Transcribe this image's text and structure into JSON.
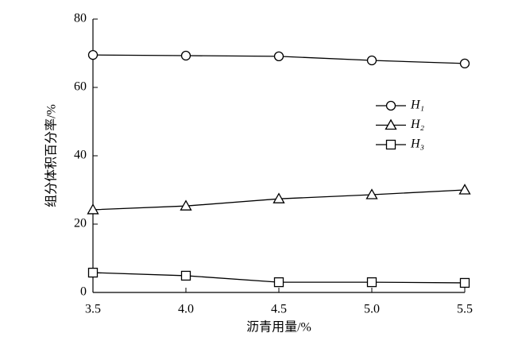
{
  "chart_data": {
    "type": "line",
    "x_label": "沥青用量/%",
    "y_label": "组分体积百分率/%",
    "x": [
      3.5,
      4.0,
      4.5,
      5.0,
      5.5
    ],
    "series": [
      {
        "name": "H₁",
        "color": "#000000",
        "marker": "circle",
        "values": [
          69.5,
          69.3,
          69.1,
          67.9,
          67.0
        ]
      },
      {
        "name": "H₂",
        "color": "#000000",
        "marker": "triangle",
        "values": [
          24.2,
          25.3,
          27.4,
          28.6,
          30.0
        ]
      },
      {
        "name": "H₃",
        "color": "#000000",
        "marker": "square",
        "values": [
          5.8,
          4.9,
          3.0,
          3.0,
          2.8
        ]
      }
    ],
    "xlim": [
      3.5,
      5.5
    ],
    "xticks": [
      3.5,
      {
        "value": 4,
        "label": "4.0"
      },
      4.5,
      {
        "value": 5,
        "label": "5.0"
      },
      5.5
    ],
    "ylim": [
      0,
      80
    ],
    "yticks": [
      0,
      20,
      40,
      60,
      80
    ],
    "grid": false,
    "legend": "right"
  }
}
